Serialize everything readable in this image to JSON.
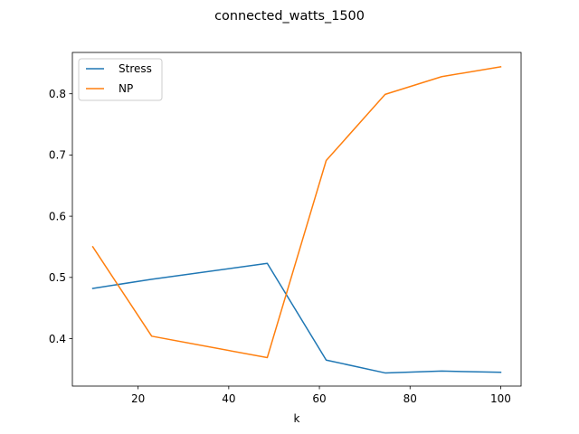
{
  "chart_data": {
    "type": "line",
    "title": "connected_watts_1500",
    "xlabel": "k",
    "ylabel": "",
    "xlim": [
      5.5,
      104.5
    ],
    "ylim": [
      0.3225,
      0.8675
    ],
    "x_ticks": [
      20,
      40,
      60,
      80,
      100
    ],
    "y_ticks": [
      0.4,
      0.5,
      0.6,
      0.7,
      0.8
    ],
    "x_tick_labels": [
      "20",
      "40",
      "60",
      "80",
      "100"
    ],
    "y_tick_labels": [
      "0.4",
      "0.5",
      "0.6",
      "0.7",
      "0.8"
    ],
    "grid": false,
    "legend_position": "upper-left",
    "x": [
      10,
      23,
      48.5,
      61.5,
      74.5,
      87,
      100
    ],
    "series": [
      {
        "name": "Stress",
        "color": "#1f77b4",
        "values": [
          0.482,
          0.497,
          0.523,
          0.365,
          0.344,
          0.347,
          0.345
        ]
      },
      {
        "name": "NP",
        "color": "#ff7f0e",
        "values": [
          0.55,
          0.404,
          0.369,
          0.691,
          0.799,
          0.828,
          0.844
        ]
      }
    ]
  }
}
